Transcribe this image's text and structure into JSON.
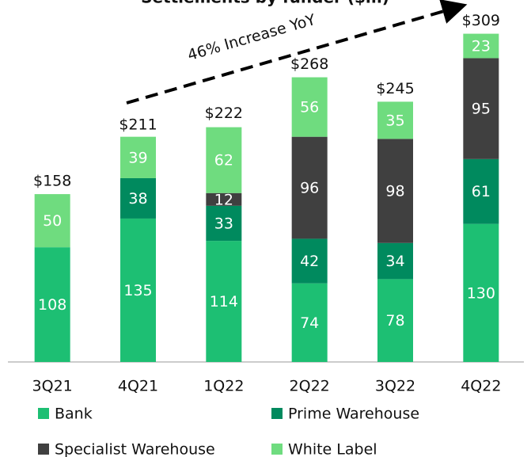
{
  "chart_data": {
    "type": "stacked_bar",
    "title": "Settlements by funder ($m)",
    "annotation": "46% Increase YoY",
    "categories": [
      "3Q21",
      "4Q21",
      "1Q22",
      "2Q22",
      "3Q22",
      "4Q22"
    ],
    "series": [
      {
        "name": "Bank",
        "color": "#1dbf73",
        "values": [
          108,
          135,
          114,
          74,
          78,
          130
        ]
      },
      {
        "name": "Prime Warehouse",
        "color": "#008a5e",
        "values": [
          null,
          38,
          33,
          42,
          34,
          61
        ]
      },
      {
        "name": "Specialist Warehouse",
        "color": "#404040",
        "values": [
          null,
          null,
          12,
          96,
          98,
          95
        ]
      },
      {
        "name": "White Label",
        "color": "#6fdc7f",
        "values": [
          50,
          39,
          62,
          56,
          35,
          23
        ]
      }
    ],
    "totals": {
      "values": [
        158,
        211,
        222,
        268,
        245,
        309
      ],
      "value_labels": [
        "$158",
        "$211",
        "$222",
        "$268",
        "$245",
        "$309"
      ]
    },
    "ylim": [
      0,
      340
    ]
  }
}
